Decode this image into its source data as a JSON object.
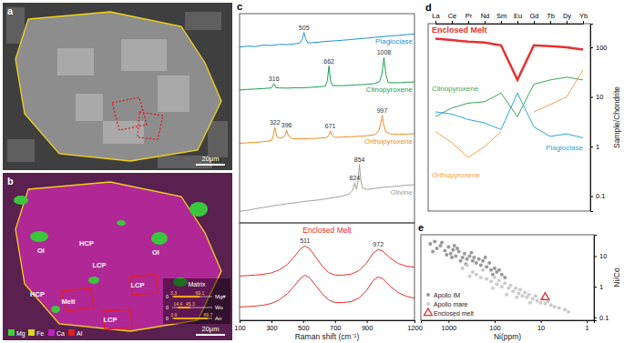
{
  "images": [
    {
      "label": "a",
      "scale_bar": "20μm"
    },
    {
      "label": "b",
      "scale_bar": "20μm",
      "annotations": [
        "Ol",
        "HCP",
        "Ol",
        "LCP",
        "HCP",
        "LCP",
        "Melt",
        "LCP"
      ],
      "element_legend": [
        {
          "name": "Mg",
          "color": "#3ad23a"
        },
        {
          "name": "Fe",
          "color": "#d8d820"
        },
        {
          "name": "Ca",
          "color": "#c020c0"
        },
        {
          "name": "Al",
          "color": "#e02020"
        }
      ],
      "inset": {
        "title": "Matrix",
        "rows": [
          {
            "name": "Mg#",
            "range": [
              0,
              100
            ],
            "min": 3.3,
            "max": 69.1
          },
          {
            "name": "Wo",
            "range": [
              0,
              100
            ],
            "min": 14.4,
            "max": 45.3
          },
          {
            "name": "An",
            "range": [
              0,
              100
            ],
            "min": 3.9,
            "max": 89.7
          }
        ]
      }
    }
  ],
  "chart_data": [
    {
      "type": "line",
      "title": "c",
      "xlim": [
        100,
        1200
      ],
      "ylim": [
        0,
        100
      ],
      "tick_labels": false,
      "series": [
        {
          "name": "Plagioclase",
          "color": "#1e90d8",
          "x": [
            100,
            150,
            200,
            250,
            300,
            350,
            400,
            450,
            480,
            495,
            505,
            515,
            530,
            600,
            650,
            700,
            750,
            800,
            850,
            900,
            950,
            1000,
            1050,
            1100,
            1150,
            1200
          ],
          "values": [
            84,
            84.5,
            84.3,
            85,
            84.8,
            85.3,
            85.2,
            85.6,
            86,
            88,
            91,
            88,
            86,
            86.4,
            86.8,
            87,
            87.3,
            87.6,
            88,
            88.3,
            88.7,
            89,
            89.4,
            89.6,
            90,
            90.3
          ]
        },
        {
          "name": "Clinopyroxene",
          "color": "#18a050",
          "x": [
            100,
            150,
            200,
            250,
            300,
            316,
            330,
            350,
            400,
            450,
            500,
            550,
            600,
            640,
            652,
            662,
            672,
            685,
            750,
            800,
            850,
            900,
            950,
            980,
            995,
            1008,
            1020,
            1035,
            1100,
            1150,
            1200
          ],
          "values": [
            63.5,
            63.8,
            64,
            64.2,
            64.5,
            66.5,
            64.6,
            64.5,
            64.4,
            64.6,
            64.6,
            64.8,
            65,
            65.4,
            68,
            75,
            68,
            65.6,
            65.6,
            65.8,
            66,
            66.2,
            66.6,
            67.5,
            71,
            79,
            71,
            67,
            67,
            67.2,
            67.4
          ]
        },
        {
          "name": "Orthopyroxene",
          "color": "#f08c1e",
          "x": [
            100,
            150,
            200,
            250,
            300,
            310,
            322,
            335,
            360,
            385,
            396,
            408,
            430,
            500,
            550,
            600,
            650,
            662,
            671,
            680,
            700,
            750,
            800,
            850,
            900,
            950,
            975,
            988,
            997,
            1006,
            1020,
            1050,
            1100,
            1150,
            1200
          ],
          "values": [
            38,
            38.3,
            38.5,
            38.8,
            39.3,
            41,
            45.5,
            41,
            40.5,
            41.5,
            44.3,
            41.5,
            40.2,
            40.2,
            40.3,
            40.5,
            40.8,
            42,
            44,
            42,
            40.9,
            41,
            41.2,
            41.4,
            41.6,
            42.2,
            44,
            47.5,
            51.5,
            47,
            43.5,
            42.5,
            42.3,
            42.5,
            42.6
          ]
        },
        {
          "name": "Olivine",
          "color": "#a0a0a0",
          "x": [
            100,
            150,
            200,
            250,
            300,
            350,
            400,
            450,
            500,
            550,
            600,
            650,
            700,
            750,
            790,
            810,
            824,
            835,
            845,
            854,
            863,
            875,
            900,
            950,
            1000,
            1050,
            1100,
            1150,
            1200
          ],
          "values": [
            5.5,
            6,
            6.8,
            7.4,
            8,
            8.6,
            9.2,
            9.6,
            10.2,
            10.6,
            11,
            11.6,
            12.2,
            12.9,
            13.8,
            15.5,
            19,
            16,
            20,
            28,
            20,
            16.5,
            16,
            16.5,
            17,
            17.3,
            17.6,
            18,
            18.3
          ]
        }
      ],
      "annotations": [
        {
          "x": 505,
          "y": 91,
          "text": "505"
        },
        {
          "x": 316,
          "y": 66.5,
          "text": "316"
        },
        {
          "x": 662,
          "y": 75,
          "text": "662"
        },
        {
          "x": 1008,
          "y": 79,
          "text": "1008"
        },
        {
          "x": 322,
          "y": 45.5,
          "text": "322"
        },
        {
          "x": 396,
          "y": 44.3,
          "text": "396"
        },
        {
          "x": 671,
          "y": 44,
          "text": "671"
        },
        {
          "x": 997,
          "y": 51.5,
          "text": "997"
        },
        {
          "x": 824,
          "y": 19,
          "text": "824"
        },
        {
          "x": 854,
          "y": 28,
          "text": "854"
        }
      ]
    },
    {
      "type": "line",
      "subtitle": "Enclosed Melt",
      "xlim": [
        100,
        1200
      ],
      "xticks": [
        100,
        300,
        500,
        700,
        900,
        1200
      ],
      "xlabel": "Raman shift (cm⁻¹)",
      "ylim": [
        0,
        110
      ],
      "tick_labels": "x",
      "series": [
        {
          "color": "#e8302c",
          "x": [
            100,
            150,
            200,
            250,
            300,
            350,
            400,
            450,
            480,
            511,
            540,
            580,
            620,
            660,
            700,
            750,
            800,
            850,
            900,
            940,
            972,
            1000,
            1050,
            1100,
            1150,
            1200
          ],
          "values": [
            50,
            50.5,
            51,
            52,
            53.5,
            57,
            63,
            73,
            80,
            84,
            81,
            71,
            61,
            54,
            51,
            51,
            52,
            56,
            65,
            76,
            80,
            78,
            70,
            64,
            61,
            60
          ]
        },
        {
          "color": "#e8302c",
          "x": [
            100,
            150,
            200,
            250,
            300,
            350,
            400,
            450,
            480,
            511,
            540,
            580,
            620,
            660,
            700,
            750,
            800,
            850,
            900,
            940,
            972,
            1000,
            1050,
            1100,
            1150,
            1200
          ],
          "values": [
            15,
            15.5,
            16,
            17,
            19,
            23,
            30,
            40,
            47,
            51,
            48,
            39,
            30,
            23,
            20,
            20,
            21,
            25,
            34,
            45,
            49,
            47,
            38,
            31,
            27,
            25
          ]
        }
      ],
      "annotations": [
        {
          "x": 511,
          "y": 84,
          "text": "511"
        },
        {
          "x": 972,
          "y": 80,
          "text": "972"
        }
      ]
    },
    {
      "type": "line",
      "title": "d",
      "categories": [
        "La",
        "Ce",
        "Pr",
        "Nd",
        "Sm",
        "Eu",
        "Gd",
        "Tb",
        "Dy",
        "Yb"
      ],
      "ylim": [
        0.05,
        300
      ],
      "yticks": [
        0.1,
        1,
        10,
        100
      ],
      "ylabel": "Sample/Chondrite",
      "log": "y",
      "series": [
        {
          "name": "Enclosed Melt",
          "color": "#e8302c",
          "values": [
            150,
            140,
            130,
            125,
            110,
            22,
            110,
            105,
            100,
            90
          ]
        },
        {
          "name": "Clinopyroxene",
          "color": "#3aa55a",
          "values": [
            4,
            6,
            7.5,
            8,
            12,
            4,
            18,
            22,
            25,
            22
          ]
        },
        {
          "name": "Plagioclase",
          "color": "#2aa8d8",
          "values": [
            5,
            4.5,
            3.5,
            3,
            2.2,
            12,
            2.5,
            1.6,
            1.8,
            1.5
          ]
        },
        {
          "name": "Orthopyroxene",
          "color": "#f0a050",
          "values": [
            2,
            1.2,
            0.6,
            1.0,
            2.0,
            null,
            5,
            7,
            10,
            35
          ]
        }
      ]
    },
    {
      "type": "scatter",
      "title": "e",
      "xlim": [
        4000,
        0.7
      ],
      "xticks": [
        1000,
        100,
        10,
        1
      ],
      "xlabel": "Ni(ppm)",
      "ylim": [
        0.08,
        50
      ],
      "yticks": [
        0.1,
        1,
        10
      ],
      "ylabel": "Ni/Co",
      "log": true,
      "legend": "lower left",
      "series": [
        {
          "name": "Apollo IM",
          "color": "#9a9a9a",
          "marker": "circle",
          "x": [
            2500,
            2000,
            1800,
            1500,
            1200,
            1000,
            900,
            800,
            700,
            600,
            500,
            450,
            400,
            350,
            300,
            280,
            250,
            220,
            200,
            180,
            150,
            130,
            120,
            100,
            90,
            80,
            70,
            60,
            1400,
            1100,
            750,
            550,
            2200,
            650,
            320,
            160,
            110,
            850,
            420
          ],
          "values": [
            25,
            30,
            18,
            22,
            15,
            20,
            12,
            16,
            10,
            14,
            9,
            12,
            8,
            10,
            7,
            9,
            6,
            8,
            5,
            7,
            4.5,
            6,
            3.5,
            4,
            3,
            3.5,
            2.5,
            2,
            28,
            11,
            22,
            7,
            14,
            18,
            13,
            9,
            2.5,
            9,
            5.5
          ]
        },
        {
          "name": "Apollo mare",
          "color": "#cccccc",
          "marker": "circle",
          "x": [
            300,
            250,
            200,
            180,
            150,
            120,
            100,
            90,
            80,
            70,
            60,
            50,
            45,
            40,
            35,
            30,
            28,
            25,
            22,
            20,
            18,
            15,
            13,
            12,
            10,
            9,
            8,
            7,
            6,
            5,
            4,
            3,
            2.5,
            500,
            400,
            350,
            110,
            55,
            33,
            17
          ],
          "values": [
            3,
            2.5,
            2,
            3.5,
            1.8,
            1.5,
            2,
            1.2,
            1.6,
            1,
            1.3,
            0.9,
            1.1,
            0.7,
            0.9,
            0.6,
            0.8,
            0.5,
            0.65,
            0.45,
            0.55,
            0.4,
            0.5,
            0.35,
            0.3,
            0.4,
            0.28,
            0.33,
            0.25,
            0.22,
            0.2,
            0.18,
            0.15,
            4,
            5,
            2.2,
            0.9,
            0.55,
            0.45,
            0.3
          ]
        },
        {
          "name": "Enclosed melt",
          "color": "#e8302c",
          "marker": "triangle",
          "x": [
            8
          ],
          "values": [
            0.45
          ]
        }
      ]
    }
  ]
}
